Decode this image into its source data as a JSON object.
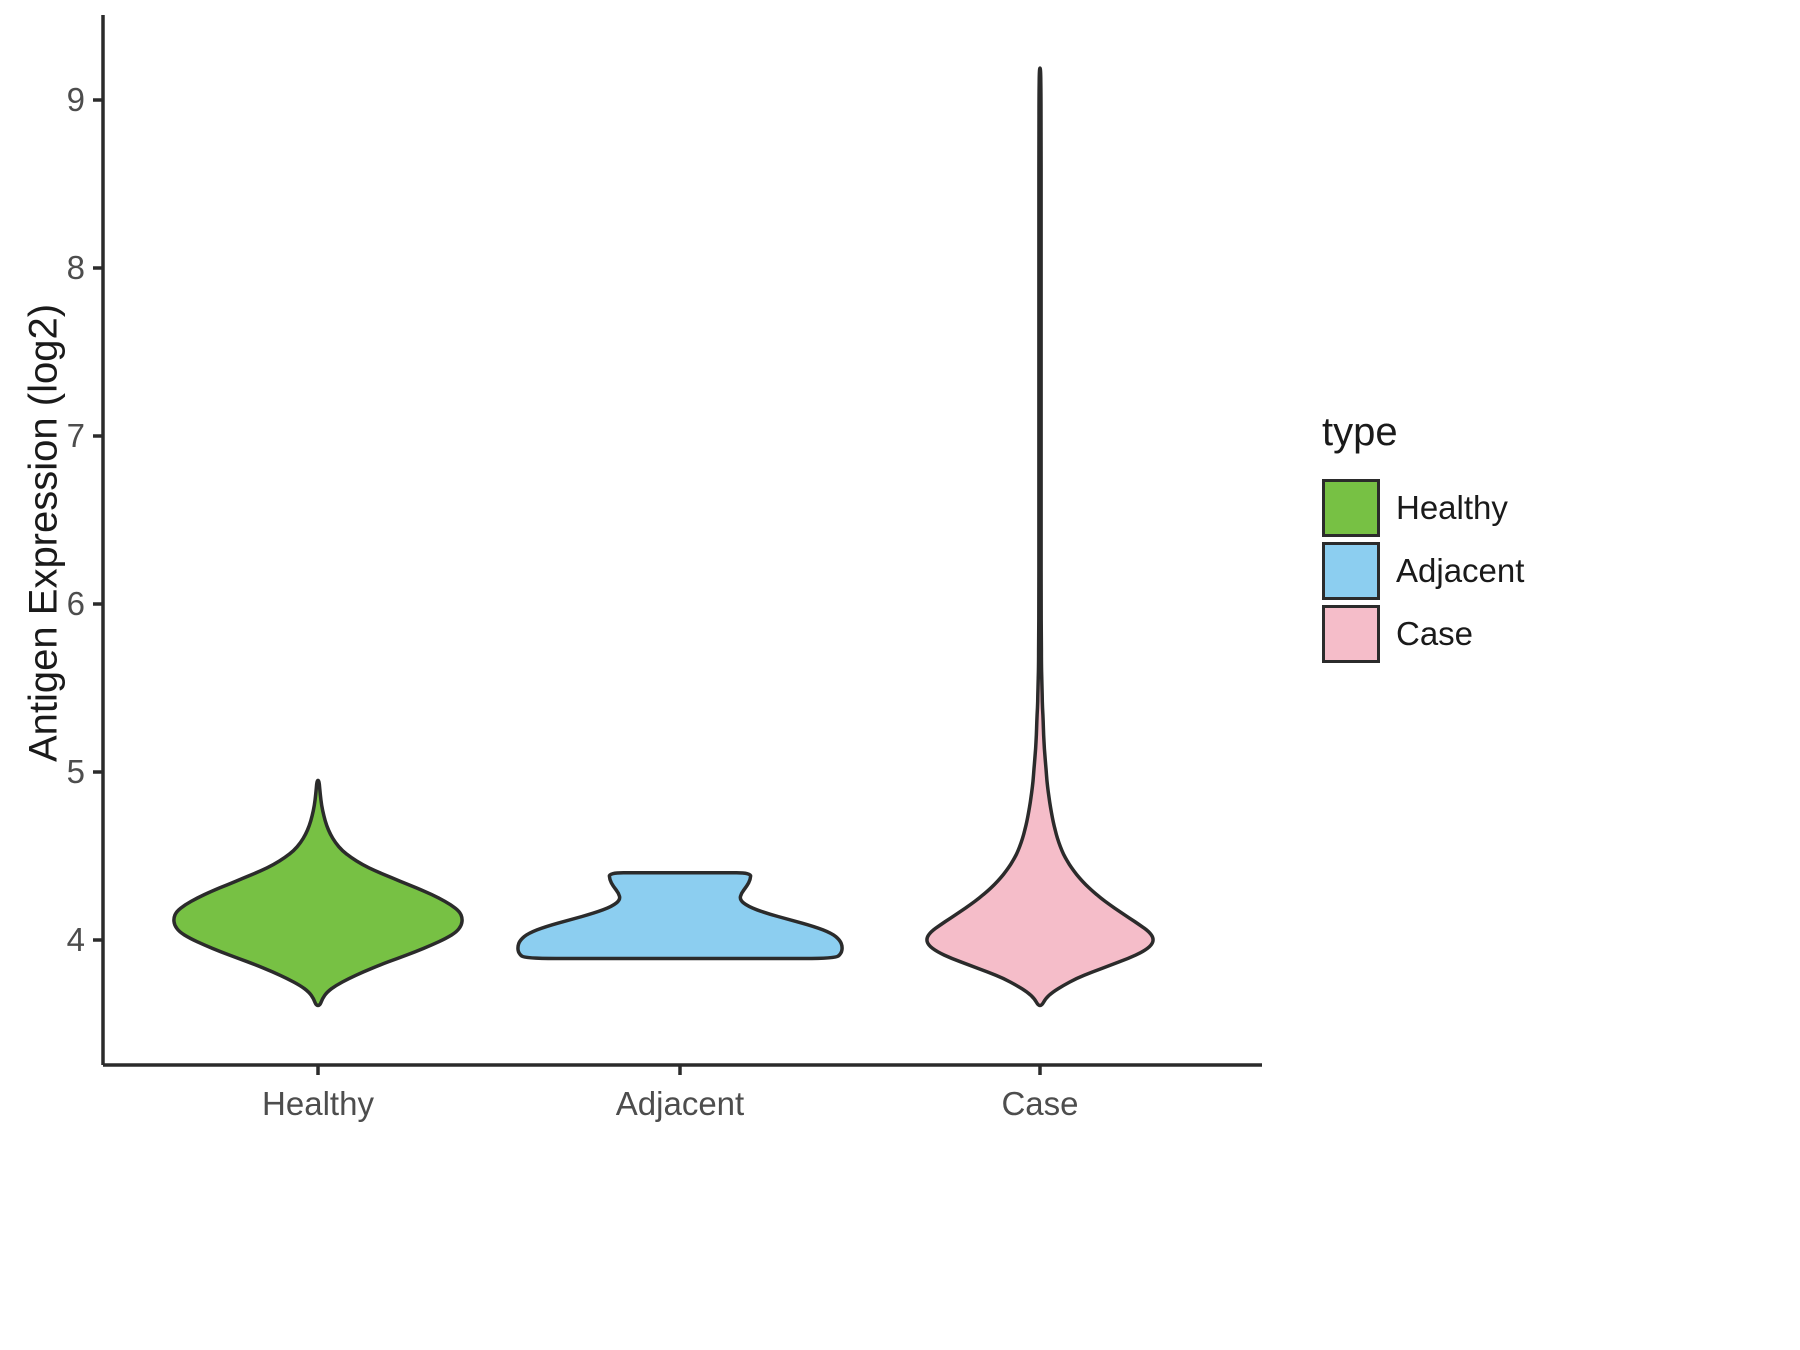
{
  "style": {
    "background": "#FFFFFF",
    "axis_color": "#2B2B2B",
    "outline_color": "#2B2B2B",
    "tick_label_color": "#4D4D4D",
    "title_color": "#1A1A1A"
  },
  "chart_data": {
    "type": "violin",
    "title": "",
    "xlabel": "",
    "ylabel": "Antigen Expression (log2)",
    "categories": [
      "Healthy",
      "Adjacent",
      "Case"
    ],
    "y_ticks": [
      4,
      5,
      6,
      7,
      8,
      9
    ],
    "ylim": [
      3.25,
      9.45
    ],
    "grid": "off",
    "legend": {
      "title": "type",
      "position": "right",
      "items": [
        {
          "label": "Healthy",
          "color": "#77C144"
        },
        {
          "label": "Adjacent",
          "color": "#8CCEF0"
        },
        {
          "label": "Case",
          "color": "#F5BDC9"
        }
      ]
    },
    "series": [
      {
        "name": "Healthy",
        "fill": "#77C144",
        "y_range": [
          3.61,
          4.95
        ],
        "profile": [
          [
            3.61,
            0.005
          ],
          [
            3.65,
            0.012
          ],
          [
            3.69,
            0.025
          ],
          [
            3.73,
            0.05
          ],
          [
            3.77,
            0.085
          ],
          [
            3.81,
            0.125
          ],
          [
            3.85,
            0.17
          ],
          [
            3.89,
            0.22
          ],
          [
            3.93,
            0.27
          ],
          [
            3.97,
            0.315
          ],
          [
            4.01,
            0.355
          ],
          [
            4.05,
            0.385
          ],
          [
            4.09,
            0.398
          ],
          [
            4.13,
            0.4
          ],
          [
            4.17,
            0.392
          ],
          [
            4.21,
            0.368
          ],
          [
            4.25,
            0.335
          ],
          [
            4.29,
            0.295
          ],
          [
            4.33,
            0.25
          ],
          [
            4.37,
            0.205
          ],
          [
            4.41,
            0.16
          ],
          [
            4.45,
            0.122
          ],
          [
            4.49,
            0.092
          ],
          [
            4.53,
            0.068
          ],
          [
            4.58,
            0.048
          ],
          [
            4.63,
            0.034
          ],
          [
            4.68,
            0.024
          ],
          [
            4.74,
            0.016
          ],
          [
            4.8,
            0.01
          ],
          [
            4.87,
            0.006
          ],
          [
            4.95,
            0.003
          ]
        ]
      },
      {
        "name": "Adjacent",
        "fill": "#8CCEF0",
        "y_range": [
          3.89,
          4.4
        ],
        "profile": [
          [
            3.89,
            0.43
          ],
          [
            3.92,
            0.447
          ],
          [
            3.96,
            0.45
          ],
          [
            4.0,
            0.443
          ],
          [
            4.04,
            0.42
          ],
          [
            4.08,
            0.372
          ],
          [
            4.12,
            0.305
          ],
          [
            4.16,
            0.238
          ],
          [
            4.2,
            0.188
          ],
          [
            4.24,
            0.165
          ],
          [
            4.28,
            0.17
          ],
          [
            4.32,
            0.185
          ],
          [
            4.36,
            0.195
          ],
          [
            4.4,
            0.196
          ]
        ]
      },
      {
        "name": "Case",
        "fill": "#F5BDC9",
        "y_range": [
          3.61,
          9.19
        ],
        "profile": [
          [
            3.61,
            0.005
          ],
          [
            3.65,
            0.015
          ],
          [
            3.69,
            0.035
          ],
          [
            3.73,
            0.065
          ],
          [
            3.77,
            0.1
          ],
          [
            3.81,
            0.145
          ],
          [
            3.85,
            0.195
          ],
          [
            3.89,
            0.245
          ],
          [
            3.93,
            0.285
          ],
          [
            3.97,
            0.31
          ],
          [
            4.01,
            0.315
          ],
          [
            4.05,
            0.302
          ],
          [
            4.09,
            0.276
          ],
          [
            4.13,
            0.248
          ],
          [
            4.17,
            0.22
          ],
          [
            4.21,
            0.193
          ],
          [
            4.25,
            0.168
          ],
          [
            4.29,
            0.146
          ],
          [
            4.33,
            0.126
          ],
          [
            4.37,
            0.109
          ],
          [
            4.41,
            0.094
          ],
          [
            4.45,
            0.081
          ],
          [
            4.49,
            0.07
          ],
          [
            4.53,
            0.061
          ],
          [
            4.58,
            0.052
          ],
          [
            4.63,
            0.045
          ],
          [
            4.68,
            0.039
          ],
          [
            4.73,
            0.034
          ],
          [
            4.79,
            0.029
          ],
          [
            4.85,
            0.025
          ],
          [
            4.91,
            0.021
          ],
          [
            4.98,
            0.018
          ],
          [
            5.06,
            0.015
          ],
          [
            5.14,
            0.012
          ],
          [
            5.22,
            0.01
          ],
          [
            5.3,
            0.009
          ],
          [
            5.38,
            0.007
          ],
          [
            5.46,
            0.006
          ],
          [
            5.54,
            0.005
          ],
          [
            5.65,
            0.004
          ],
          [
            5.8,
            0.0035
          ],
          [
            6.0,
            0.003
          ],
          [
            6.4,
            0.003
          ],
          [
            6.8,
            0.003
          ],
          [
            7.2,
            0.003
          ],
          [
            7.6,
            0.003
          ],
          [
            8.0,
            0.003
          ],
          [
            8.4,
            0.003
          ],
          [
            8.8,
            0.003
          ],
          [
            9.02,
            0.0027
          ],
          [
            9.19,
            0.002
          ]
        ]
      }
    ]
  }
}
